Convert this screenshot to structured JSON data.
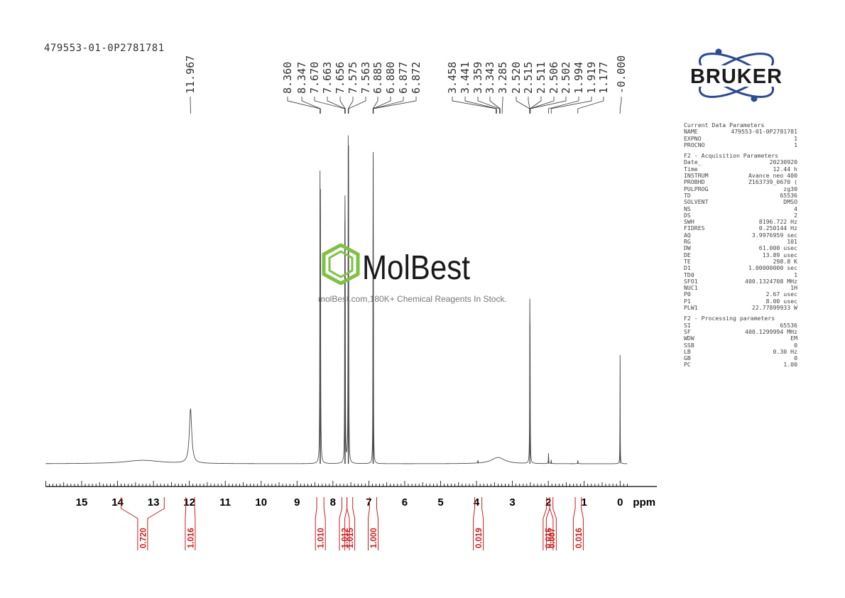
{
  "sample_id": "479553-01-0P2781781",
  "watermark": {
    "brand": "MolBest",
    "tagline": "molBest.com,180K+ Chemical Reagents In Stock."
  },
  "vendor": {
    "logo_text": "BRUKER"
  },
  "colors": {
    "spectrum": "#4a4a4a",
    "integral": "#cc1b1b",
    "molbest_green": "#7dc242",
    "bruker_blue": "#2a4a9a"
  },
  "parameters": {
    "current": {
      "title": "Current Data Parameters",
      "rows": [
        {
          "k": "NAME",
          "v": "479553-01-0P2781781"
        },
        {
          "k": "EXPNO",
          "v": "1"
        },
        {
          "k": "PROCNO",
          "v": "1"
        }
      ]
    },
    "acquisition": {
      "title": "F2 - Acquisition Parameters",
      "rows": [
        {
          "k": "Date_",
          "v": "20230920"
        },
        {
          "k": "Time",
          "v": "12.44 h"
        },
        {
          "k": "INSTRUM",
          "v": "Avance neo 400"
        },
        {
          "k": "PROBHD",
          "v": "Z163739_0670 ("
        },
        {
          "k": "PULPROG",
          "v": "zg30"
        },
        {
          "k": "TD",
          "v": "65536"
        },
        {
          "k": "SOLVENT",
          "v": "DMSO"
        },
        {
          "k": "NS",
          "v": "4"
        },
        {
          "k": "DS",
          "v": "2"
        },
        {
          "k": "SWH",
          "v": "8196.722 Hz"
        },
        {
          "k": "FIDRES",
          "v": "0.250144 Hz"
        },
        {
          "k": "AQ",
          "v": "3.9976959 sec"
        },
        {
          "k": "RG",
          "v": "101"
        },
        {
          "k": "DW",
          "v": "61.000 usec"
        },
        {
          "k": "DE",
          "v": "13.89 usec"
        },
        {
          "k": "TE",
          "v": "298.8 K"
        },
        {
          "k": "D1",
          "v": "1.00000000 sec"
        },
        {
          "k": "TD0",
          "v": "1"
        },
        {
          "k": "SFO1",
          "v": "400.1324708 MHz"
        },
        {
          "k": "NUC1",
          "v": "1H"
        },
        {
          "k": "P0",
          "v": "2.67 usec"
        },
        {
          "k": "P1",
          "v": "8.00 usec"
        },
        {
          "k": "PLW1",
          "v": "22.77899933 W"
        }
      ]
    },
    "processing": {
      "title": "F2 - Processing parameters",
      "rows": [
        {
          "k": "SI",
          "v": "65536"
        },
        {
          "k": "SF",
          "v": "400.1299994 MHz"
        },
        {
          "k": "WDW",
          "v": "EM"
        },
        {
          "k": "SSB",
          "v": "0"
        },
        {
          "k": "LB",
          "v": "0.30 Hz"
        },
        {
          "k": "GB",
          "v": "0"
        },
        {
          "k": "PC",
          "v": "1.00"
        }
      ]
    }
  },
  "chart_data": {
    "type": "line",
    "xlabel": "ppm",
    "xlim": [
      16,
      -0.2
    ],
    "x_reversed": true,
    "ticks": [
      15,
      14,
      13,
      12,
      11,
      10,
      9,
      8,
      7,
      6,
      5,
      4,
      3,
      2,
      1,
      0
    ],
    "tick_labels": [
      "15",
      "14",
      "13",
      "12",
      "11",
      "10",
      "9",
      "8",
      "7",
      "6",
      "5",
      "4",
      "3",
      "2",
      "1",
      "0"
    ],
    "peak_labels": [
      {
        "text": "11.967",
        "ppm": 11.967
      },
      {
        "text": "8.360",
        "ppm": 8.36
      },
      {
        "text": "8.347",
        "ppm": 8.347
      },
      {
        "text": "7.670",
        "ppm": 7.67
      },
      {
        "text": "7.663",
        "ppm": 7.663
      },
      {
        "text": "7.656",
        "ppm": 7.656
      },
      {
        "text": "7.575",
        "ppm": 7.575
      },
      {
        "text": "7.563",
        "ppm": 7.563
      },
      {
        "text": "6.885",
        "ppm": 6.885
      },
      {
        "text": "6.880",
        "ppm": 6.88
      },
      {
        "text": "6.877",
        "ppm": 6.877
      },
      {
        "text": "6.872",
        "ppm": 6.872
      },
      {
        "text": "3.458",
        "ppm": 3.458
      },
      {
        "text": "3.441",
        "ppm": 3.441
      },
      {
        "text": "3.359",
        "ppm": 3.359
      },
      {
        "text": "3.343",
        "ppm": 3.343
      },
      {
        "text": "3.285",
        "ppm": 3.285
      },
      {
        "text": "2.520",
        "ppm": 2.52
      },
      {
        "text": "2.515",
        "ppm": 2.515
      },
      {
        "text": "2.511",
        "ppm": 2.511
      },
      {
        "text": "2.506",
        "ppm": 2.506
      },
      {
        "text": "2.502",
        "ppm": 2.502
      },
      {
        "text": "1.994",
        "ppm": 1.994
      },
      {
        "text": "1.919",
        "ppm": 1.919
      },
      {
        "text": "1.177",
        "ppm": 1.177
      },
      {
        "text": "-0.000",
        "ppm": 0.0
      }
    ],
    "peaks": [
      {
        "ppm": 11.967,
        "height": 0.19,
        "width": 0.04
      },
      {
        "ppm": 8.36,
        "height": 0.88,
        "width": 0.006
      },
      {
        "ppm": 8.347,
        "height": 0.8,
        "width": 0.006
      },
      {
        "ppm": 7.67,
        "height": 0.56,
        "width": 0.005
      },
      {
        "ppm": 7.663,
        "height": 0.6,
        "width": 0.005
      },
      {
        "ppm": 7.656,
        "height": 0.42,
        "width": 0.005
      },
      {
        "ppm": 7.575,
        "height": 1.0,
        "width": 0.005
      },
      {
        "ppm": 7.563,
        "height": 0.96,
        "width": 0.005
      },
      {
        "ppm": 6.885,
        "height": 0.45,
        "width": 0.004
      },
      {
        "ppm": 6.88,
        "height": 0.5,
        "width": 0.004
      },
      {
        "ppm": 6.877,
        "height": 0.48,
        "width": 0.004
      },
      {
        "ppm": 6.872,
        "height": 0.42,
        "width": 0.004
      },
      {
        "ppm": 3.4,
        "height": 0.022,
        "width": 0.22
      },
      {
        "ppm": 2.515,
        "height": 0.48,
        "width": 0.005
      },
      {
        "ppm": 2.507,
        "height": 0.34,
        "width": 0.005
      },
      {
        "ppm": 1.994,
        "height": 0.035,
        "width": 0.006
      },
      {
        "ppm": 1.919,
        "height": 0.012,
        "width": 0.006
      },
      {
        "ppm": 1.177,
        "height": 0.012,
        "width": 0.006
      },
      {
        "ppm": 0.0,
        "height": 0.38,
        "width": 0.004
      },
      {
        "ppm": 13.3,
        "height": 0.012,
        "width": 0.6
      },
      {
        "ppm": 3.96,
        "height": 0.008,
        "width": 0.01
      }
    ],
    "integrals": [
      {
        "from": 13.9,
        "to": 12.7,
        "value": "0.720"
      },
      {
        "from": 12.1,
        "to": 11.85,
        "value": "1.016"
      },
      {
        "from": 8.45,
        "to": 8.25,
        "value": "1.010"
      },
      {
        "from": 7.75,
        "to": 7.61,
        "value": "1.012"
      },
      {
        "from": 7.61,
        "to": 7.45,
        "value": "1.015"
      },
      {
        "from": 6.98,
        "to": 6.78,
        "value": "1.000"
      },
      {
        "from": 4.05,
        "to": 3.85,
        "value": "0.019"
      },
      {
        "from": 2.05,
        "to": 1.96,
        "value": "0.015"
      },
      {
        "from": 1.96,
        "to": 1.87,
        "value": "0.007"
      },
      {
        "from": 1.25,
        "to": 1.08,
        "value": "0.016"
      }
    ]
  }
}
